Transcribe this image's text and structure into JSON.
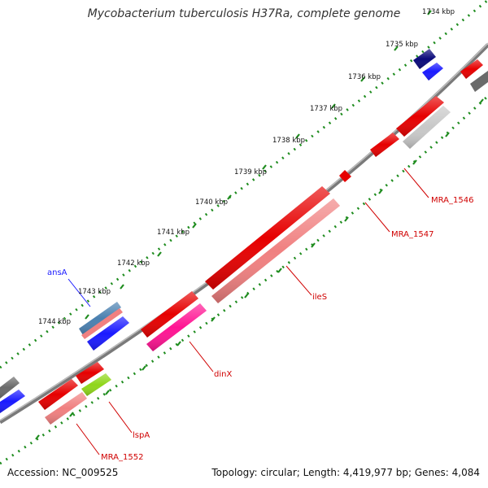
{
  "title": "Mycobacterium tuberculosis H37Ra, complete genome",
  "footer": {
    "accession": "Accession: NC_009525",
    "summary": "Topology: circular; Length: 4,419,977 bp; Genes: 4,084"
  },
  "ruler_ticks": [
    "1734 kbp",
    "1735 kbp",
    "1736 kbp",
    "1737 kbp",
    "1738 kbp",
    "1739 kbp",
    "1740 kbp",
    "1741 kbp",
    "1742 kbp",
    "1743 kbp",
    "1744 kbp"
  ],
  "gene_labels": {
    "ansA": "ansA",
    "mra1546": "MRA_1546",
    "mra1547": "MRA_1547",
    "iles": "ileS",
    "dinx": "dinX",
    "lspa": "lspA",
    "mra1552": "MRA_1552"
  },
  "colors": {
    "backbone": "#7a7a7a",
    "ruler": "#1e8c1e",
    "forward_gene": "#e60000",
    "forward_cds": "#f08080",
    "reverse_gene": "#1a1aff",
    "navy_gene": "#0a0a7a",
    "pseudo_gene": "#6a6a6a",
    "grey_cds": "#c8c8c8",
    "pink_cds": "#ff1493",
    "lime_cds": "#8fd61a",
    "steel_gene": "#4a80b0",
    "ansA_label": "#1a1aff",
    "red_label": "#d00000"
  }
}
